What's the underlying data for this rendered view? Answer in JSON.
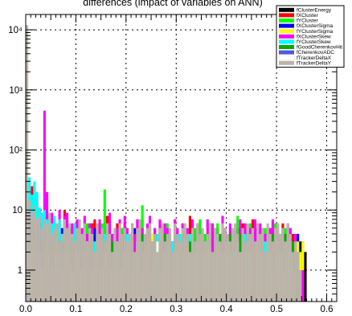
{
  "chart_data": {
    "type": "histogram",
    "title": "differences (impact of variables on ANN)",
    "xlabel": "",
    "ylabel": "",
    "xlim": [
      0.0,
      0.62
    ],
    "ylim": [
      0.3,
      18000
    ],
    "yscale": "log",
    "x_ticks": [
      "0.0",
      "0.1",
      "0.2",
      "0.3",
      "0.4",
      "0.5",
      "0.6"
    ],
    "y_ticks": [
      "1",
      "10",
      "10²",
      "10³",
      "10⁴"
    ],
    "grid": true,
    "legend_position": "top-right",
    "bin_width": 0.005,
    "series": [
      {
        "name": "fClusterEnergy",
        "color": "#000000",
        "values": [
          1,
          0,
          20,
          8,
          5,
          4,
          3,
          6,
          4,
          2,
          3,
          1,
          4,
          2,
          1,
          2,
          3,
          1,
          5,
          2,
          1,
          3,
          2,
          4,
          1,
          2,
          3,
          1,
          2,
          4,
          1,
          3,
          5,
          2,
          1,
          3,
          2,
          1,
          3,
          2,
          1,
          2,
          4,
          1,
          3,
          2,
          1,
          2,
          3,
          5,
          2,
          1,
          3,
          2,
          1,
          2,
          3,
          4,
          1,
          2,
          3,
          1,
          2,
          3,
          1,
          2,
          4,
          1,
          3,
          2,
          1,
          2,
          3,
          2,
          1,
          3,
          5,
          2,
          1,
          3,
          2,
          1,
          3,
          2,
          1,
          5,
          2,
          1,
          3,
          2,
          1,
          2,
          3,
          4,
          1,
          2,
          3,
          1,
          2,
          4,
          1,
          2,
          3,
          1,
          2,
          3,
          4,
          1,
          2,
          3,
          1,
          2
        ]
      },
      {
        "name": "fXCluster",
        "color": "#ff0000",
        "values": [
          1,
          3,
          25,
          12,
          18,
          10,
          6,
          4,
          9,
          5,
          3,
          7,
          4,
          3,
          2,
          10,
          8,
          4,
          3,
          6,
          2,
          5,
          3,
          2,
          1,
          4,
          6,
          7,
          3,
          2,
          5,
          3,
          8,
          2,
          4,
          3,
          6,
          2,
          1,
          3,
          2,
          4,
          1,
          3,
          5,
          2,
          7,
          3,
          2,
          4,
          1,
          3,
          2,
          5,
          6,
          2,
          3,
          2,
          1,
          7,
          3,
          2,
          4,
          3,
          2,
          8,
          2,
          3,
          2,
          1,
          4,
          2,
          3,
          6,
          2,
          1,
          5,
          3,
          2,
          4,
          3,
          1,
          2,
          3,
          5,
          2,
          6,
          3,
          2,
          4,
          7,
          3,
          2,
          1,
          4,
          3,
          2,
          5,
          1,
          2,
          3,
          2,
          6,
          3,
          1,
          2,
          4,
          2,
          3,
          1,
          2,
          0
        ]
      },
      {
        "name": "fYCluster",
        "color": "#00ff00",
        "values": [
          1,
          1,
          14,
          9,
          6,
          5,
          8,
          4,
          3,
          7,
          2,
          5,
          4,
          3,
          2,
          6,
          4,
          3,
          2,
          3,
          5,
          2,
          4,
          3,
          6,
          2,
          5,
          3,
          2,
          4,
          6,
          22,
          5,
          3,
          2,
          4,
          3,
          2,
          5,
          6,
          2,
          3,
          4,
          2,
          5,
          3,
          12,
          2,
          4,
          3,
          2,
          5,
          2,
          3,
          4,
          2,
          6,
          3,
          2,
          5,
          4,
          3,
          6,
          2,
          3,
          4,
          2,
          5,
          3,
          7,
          2,
          4,
          3,
          2,
          5,
          3,
          6,
          2,
          4,
          3,
          2,
          5,
          3,
          2,
          8,
          3,
          2,
          5,
          4,
          6,
          3,
          2,
          4,
          3,
          2,
          5,
          4,
          3,
          2,
          6,
          3,
          4,
          2,
          5,
          3,
          2,
          3,
          2,
          4,
          2,
          1,
          0
        ]
      },
      {
        "name": "fXClusterSigma",
        "color": "#0000ff",
        "values": [
          1,
          2,
          3,
          2,
          4,
          3,
          2,
          5,
          3,
          2,
          4,
          2,
          3,
          2,
          5,
          3,
          2,
          4,
          3,
          2,
          5,
          3,
          2,
          4,
          2,
          3,
          2,
          5,
          3,
          4,
          2,
          3,
          5,
          2,
          4,
          3,
          2,
          5,
          3,
          2,
          4,
          2,
          3,
          5,
          2,
          4,
          3,
          2,
          3,
          2,
          4,
          3,
          2,
          5,
          2,
          3,
          4,
          2,
          3,
          5,
          2,
          3,
          2,
          4,
          3,
          2,
          5,
          2,
          3,
          4,
          2,
          3,
          2,
          5,
          3,
          4,
          2,
          3,
          2,
          5,
          3,
          2,
          4,
          3,
          2,
          5,
          2,
          3,
          4,
          2,
          3,
          2,
          5,
          3,
          2,
          4,
          3,
          2,
          5,
          2,
          3,
          4,
          2,
          3,
          2,
          5,
          3,
          2,
          4,
          2,
          3,
          0
        ]
      },
      {
        "name": "fYClusterSigma",
        "color": "#ffff00",
        "values": [
          0,
          2,
          3,
          2,
          4,
          3,
          2,
          3,
          2,
          4,
          2,
          3,
          2,
          3,
          4,
          2,
          3,
          2,
          4,
          3,
          2,
          3,
          2,
          4,
          3,
          2,
          3,
          2,
          4,
          2,
          3,
          2,
          3,
          4,
          2,
          3,
          2,
          4,
          3,
          2,
          3,
          4,
          2,
          3,
          2,
          3,
          4,
          2,
          3,
          2,
          4,
          2,
          3,
          2,
          3,
          4,
          2,
          3,
          2,
          4,
          3,
          2,
          3,
          2,
          4,
          3,
          2,
          3,
          4,
          2,
          3,
          2,
          4,
          2,
          3,
          2,
          3,
          4,
          2,
          3,
          2,
          4,
          3,
          2,
          3,
          4,
          2,
          3,
          2,
          4,
          2,
          3,
          2,
          3,
          4,
          2,
          3,
          2,
          4,
          3,
          2,
          3,
          2,
          4,
          2,
          3,
          2,
          4,
          3,
          2,
          3,
          0
        ]
      },
      {
        "name": "fXClusterSkew",
        "color": "#ff00ff",
        "values": [
          2,
          12,
          18,
          25,
          15,
          9,
          8,
          450,
          20,
          6,
          9,
          7,
          4,
          10,
          3,
          8,
          9,
          5,
          6,
          4,
          7,
          3,
          5,
          8,
          4,
          6,
          5,
          3,
          4,
          7,
          5,
          3,
          6,
          9,
          4,
          3,
          5,
          7,
          4,
          8,
          5,
          3,
          6,
          4,
          7,
          3,
          5,
          4,
          6,
          8,
          3,
          5,
          4,
          7,
          3,
          6,
          5,
          4,
          3,
          7,
          5,
          4,
          6,
          3,
          5,
          4,
          7,
          3,
          6,
          4,
          5,
          3,
          7,
          4,
          6,
          5,
          3,
          4,
          8,
          5,
          3,
          6,
          4,
          5,
          3,
          7,
          4,
          6,
          3,
          5,
          4,
          7,
          3,
          6,
          5,
          4,
          3,
          5,
          7,
          4,
          6,
          3,
          5,
          4,
          6,
          5,
          3,
          4,
          2,
          1,
          1,
          0
        ]
      },
      {
        "name": "fYClusterSkew",
        "color": "#00ffff",
        "values": [
          1,
          35,
          18,
          30,
          20,
          11,
          9,
          10,
          7,
          8,
          6,
          8,
          5,
          7,
          4,
          6,
          5,
          3,
          4,
          6,
          3,
          2,
          4,
          3,
          2,
          1,
          4,
          3,
          2,
          3,
          2,
          4,
          1,
          2,
          3,
          4,
          2,
          3,
          1,
          2,
          4,
          3,
          2,
          1,
          3,
          2,
          4,
          2,
          3,
          1,
          2,
          3,
          4,
          2,
          1,
          3,
          2,
          4,
          3,
          2,
          1,
          4,
          2,
          3,
          2,
          4,
          1,
          3,
          2,
          1,
          4,
          3,
          2,
          3,
          1,
          2,
          4,
          3,
          2,
          1,
          3,
          2,
          4,
          3,
          2,
          1,
          3,
          4,
          2,
          1,
          3,
          2,
          1,
          4,
          2,
          3,
          1,
          2,
          3,
          2,
          1,
          4,
          3,
          2,
          1,
          3,
          2,
          1,
          2,
          0,
          0,
          0
        ]
      },
      {
        "name": "fGoodCherenkovHit",
        "color": "#00aa00",
        "values": [
          1,
          2,
          3,
          4,
          2,
          3,
          2,
          4,
          3,
          2,
          3,
          2,
          4,
          3,
          2,
          3,
          4,
          2,
          3,
          2,
          4,
          3,
          2,
          3,
          2,
          4,
          3,
          2,
          3,
          4,
          2,
          3,
          2,
          4,
          3,
          2,
          3,
          2,
          4,
          3,
          2,
          3,
          4,
          2,
          3,
          2,
          4,
          3,
          2,
          3,
          2,
          4,
          3,
          2,
          3,
          4,
          2,
          3,
          2,
          4,
          3,
          2,
          3,
          2,
          4,
          3,
          2,
          3,
          4,
          2,
          3,
          2,
          4,
          3,
          2,
          3,
          2,
          4,
          3,
          2,
          3,
          4,
          2,
          3,
          2,
          4,
          3,
          2,
          3,
          2,
          4,
          3,
          2,
          3,
          4,
          2,
          3,
          2,
          4,
          3,
          2,
          3,
          2,
          4,
          3,
          2,
          3,
          2,
          1,
          0,
          0,
          0
        ]
      },
      {
        "name": "fCherenkovADC",
        "color": "#5555dd",
        "values": [
          2,
          4,
          5,
          3,
          4,
          6,
          3,
          5,
          4,
          3,
          2,
          4,
          3,
          2,
          1,
          3,
          2,
          1,
          2,
          1,
          3,
          1,
          2,
          1,
          0,
          1,
          2,
          1,
          0,
          1,
          2,
          0,
          1,
          0,
          1,
          0,
          1,
          0,
          0,
          1,
          0,
          1,
          0,
          0,
          1,
          0,
          0,
          1,
          0,
          0,
          0,
          1,
          0,
          0,
          0,
          1,
          0,
          0,
          0,
          0,
          1,
          0,
          0,
          0,
          0,
          0,
          1,
          0,
          0,
          0,
          0,
          0,
          0,
          1,
          0,
          0,
          0,
          0,
          0,
          0,
          0,
          1,
          0,
          0,
          0,
          0,
          0,
          0,
          0,
          0,
          1,
          0,
          0,
          0,
          0,
          0,
          0,
          0,
          0,
          0,
          1,
          0,
          0,
          0,
          0,
          0,
          0,
          0,
          0,
          0,
          0,
          0
        ]
      },
      {
        "name": "fTrackerDeltaX",
        "color": "#ffffff",
        "values": [
          1,
          2,
          3,
          2,
          3,
          2,
          1,
          2,
          3,
          2,
          1,
          2,
          3,
          2,
          1,
          2,
          3,
          2,
          1,
          2,
          3,
          2,
          1,
          2,
          3,
          2,
          1,
          2,
          3,
          2,
          1,
          2,
          3,
          2,
          1,
          2,
          3,
          2,
          1,
          2,
          3,
          2,
          1,
          2,
          3,
          2,
          1,
          2,
          3,
          2,
          1,
          2,
          3,
          2,
          1,
          2,
          3,
          2,
          1,
          2,
          3,
          2,
          1,
          2,
          3,
          2,
          1,
          2,
          3,
          2,
          1,
          2,
          3,
          2,
          1,
          2,
          3,
          2,
          1,
          2,
          3,
          2,
          1,
          2,
          3,
          2,
          1,
          2,
          3,
          2,
          1,
          2,
          3,
          2,
          1,
          2,
          3,
          2,
          1,
          2,
          3,
          2,
          1,
          2,
          3,
          2,
          1,
          0,
          0,
          0,
          0,
          0
        ]
      },
      {
        "name": "fTrackerDeltaY",
        "color": "#bbb3a8",
        "values": [
          12000,
          15,
          9,
          12,
          7,
          8,
          5,
          7,
          6,
          9,
          4,
          5,
          6,
          3,
          4,
          7,
          5,
          6,
          4,
          3,
          5,
          7,
          4,
          6,
          3,
          5,
          4,
          2,
          6,
          4,
          5,
          3,
          6,
          4,
          2,
          5,
          3,
          6,
          4,
          5,
          3,
          4,
          6,
          2,
          5,
          7,
          3,
          4,
          5,
          6,
          3,
          4,
          2,
          5,
          6,
          3,
          4,
          5,
          2,
          6,
          4,
          3,
          5,
          6,
          4,
          2,
          5,
          3,
          6,
          4,
          5,
          3,
          4,
          6,
          2,
          5,
          4,
          3,
          6,
          5,
          4,
          3,
          5,
          6,
          4,
          2,
          5,
          3,
          6,
          4,
          5,
          3,
          6,
          4,
          5,
          2,
          6,
          4,
          3,
          5,
          6,
          4,
          5,
          3,
          6,
          4,
          2,
          3,
          2,
          1,
          0,
          0
        ]
      }
    ]
  }
}
